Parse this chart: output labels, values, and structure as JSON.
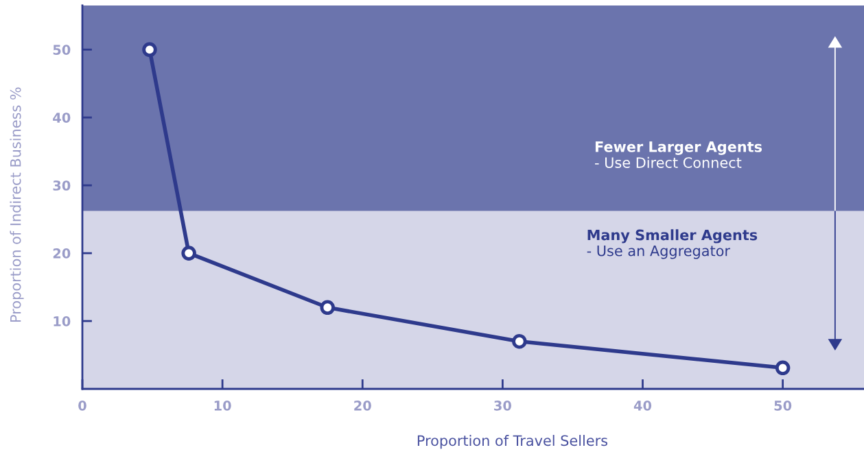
{
  "chart_data": {
    "type": "line",
    "xlabel": "Proportion of Travel Sellers",
    "ylabel": "Proportion of Indirect Business %",
    "x": [
      4.8,
      7.6,
      17.5,
      31.2,
      50
    ],
    "series": [
      {
        "color": "#2e3a8c",
        "values": [
          50,
          20,
          12,
          7,
          3.1
        ]
      }
    ],
    "xlim": [
      0,
      55.8
    ],
    "ylim": [
      0,
      56.5
    ],
    "xticks": [
      0,
      10,
      20,
      30,
      40,
      50
    ],
    "yticks": [
      10,
      20,
      30,
      40,
      50
    ],
    "bands": [
      {
        "axis": "y",
        "from": 26.2,
        "to": 56.5,
        "color": "#6b74ad",
        "label": "Fewer Larger Agents\n- Use Direct Connect"
      },
      {
        "axis": "y",
        "from": 0,
        "to": 26.2,
        "color": "#d5d6e8",
        "label": "Many Smaller Agents\n- Use an Aggregator"
      }
    ],
    "marker": "circle",
    "line_style": "solid",
    "grid": false,
    "legend": false
  }
}
